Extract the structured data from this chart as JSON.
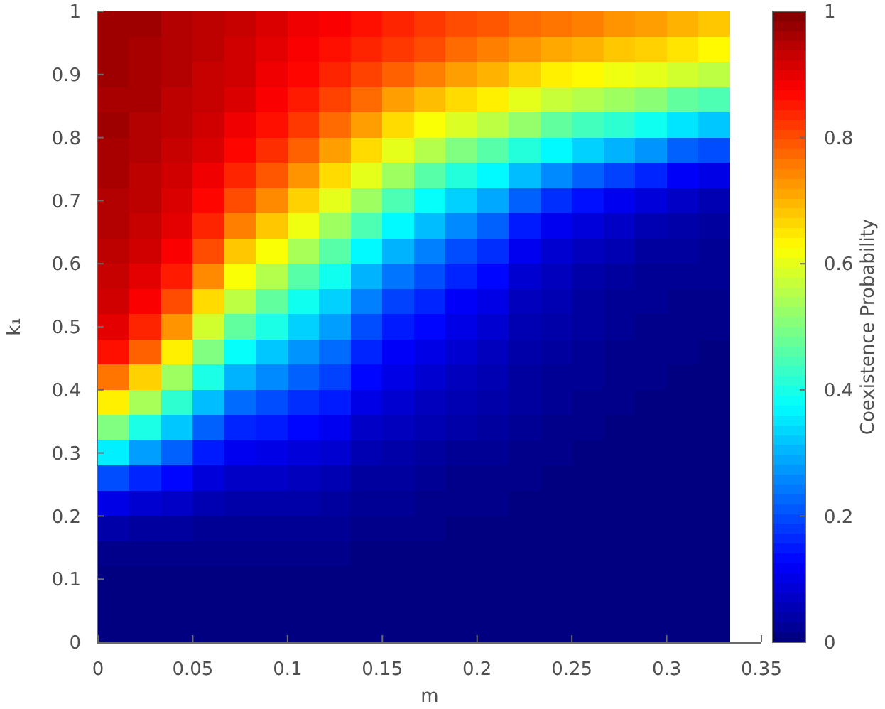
{
  "chart_data": {
    "type": "heatmap",
    "xlabel": "m",
    "ylabel": "k₁",
    "clabel": "Coexistence Probability",
    "x": [
      0.0083,
      0.025,
      0.0417,
      0.0583,
      0.075,
      0.0917,
      0.1083,
      0.125,
      0.1417,
      0.1583,
      0.175,
      0.1917,
      0.2083,
      0.225,
      0.2417,
      0.2583,
      0.275,
      0.2917,
      0.3083,
      0.325
    ],
    "cells": [
      [
        0.97,
        0.97,
        0.95,
        0.94,
        0.93,
        0.91,
        0.89,
        0.88,
        0.86,
        0.84,
        0.82,
        0.8,
        0.79,
        0.77,
        0.76,
        0.75,
        0.73,
        0.72,
        0.7,
        0.68
      ],
      [
        0.97,
        0.96,
        0.95,
        0.94,
        0.92,
        0.9,
        0.88,
        0.86,
        0.84,
        0.82,
        0.8,
        0.77,
        0.75,
        0.73,
        0.71,
        0.7,
        0.68,
        0.67,
        0.65,
        0.63
      ],
      [
        0.97,
        0.96,
        0.95,
        0.93,
        0.92,
        0.89,
        0.87,
        0.84,
        0.81,
        0.78,
        0.75,
        0.72,
        0.7,
        0.67,
        0.64,
        0.63,
        0.61,
        0.6,
        0.58,
        0.56
      ],
      [
        0.96,
        0.96,
        0.94,
        0.93,
        0.91,
        0.88,
        0.85,
        0.81,
        0.77,
        0.72,
        0.69,
        0.66,
        0.64,
        0.6,
        0.57,
        0.55,
        0.53,
        0.51,
        0.47,
        0.45
      ],
      [
        0.97,
        0.95,
        0.94,
        0.92,
        0.89,
        0.86,
        0.82,
        0.77,
        0.72,
        0.66,
        0.62,
        0.59,
        0.56,
        0.52,
        0.47,
        0.44,
        0.42,
        0.39,
        0.35,
        0.32
      ],
      [
        0.96,
        0.95,
        0.93,
        0.91,
        0.87,
        0.83,
        0.78,
        0.72,
        0.66,
        0.6,
        0.55,
        0.5,
        0.46,
        0.41,
        0.37,
        0.33,
        0.3,
        0.27,
        0.22,
        0.2
      ],
      [
        0.96,
        0.94,
        0.92,
        0.89,
        0.84,
        0.79,
        0.73,
        0.66,
        0.6,
        0.53,
        0.46,
        0.41,
        0.37,
        0.31,
        0.26,
        0.22,
        0.19,
        0.16,
        0.12,
        0.1
      ],
      [
        0.95,
        0.94,
        0.91,
        0.87,
        0.8,
        0.74,
        0.67,
        0.6,
        0.53,
        0.45,
        0.38,
        0.33,
        0.29,
        0.22,
        0.17,
        0.14,
        0.11,
        0.09,
        0.07,
        0.05
      ],
      [
        0.95,
        0.93,
        0.9,
        0.84,
        0.75,
        0.68,
        0.61,
        0.53,
        0.45,
        0.37,
        0.31,
        0.26,
        0.22,
        0.15,
        0.11,
        0.09,
        0.07,
        0.05,
        0.04,
        0.03
      ],
      [
        0.94,
        0.92,
        0.88,
        0.8,
        0.68,
        0.62,
        0.54,
        0.46,
        0.37,
        0.3,
        0.25,
        0.2,
        0.17,
        0.11,
        0.08,
        0.06,
        0.05,
        0.03,
        0.03,
        0.02
      ],
      [
        0.93,
        0.9,
        0.85,
        0.74,
        0.62,
        0.55,
        0.46,
        0.39,
        0.3,
        0.24,
        0.2,
        0.16,
        0.13,
        0.08,
        0.06,
        0.04,
        0.03,
        0.02,
        0.02,
        0.02
      ],
      [
        0.92,
        0.88,
        0.8,
        0.66,
        0.56,
        0.47,
        0.39,
        0.33,
        0.25,
        0.19,
        0.16,
        0.12,
        0.1,
        0.06,
        0.05,
        0.03,
        0.02,
        0.02,
        0.01,
        0.01
      ],
      [
        0.9,
        0.84,
        0.73,
        0.58,
        0.47,
        0.4,
        0.33,
        0.28,
        0.2,
        0.15,
        0.13,
        0.1,
        0.08,
        0.05,
        0.04,
        0.03,
        0.02,
        0.01,
        0.01,
        0.01
      ],
      [
        0.86,
        0.78,
        0.64,
        0.5,
        0.38,
        0.32,
        0.27,
        0.23,
        0.16,
        0.12,
        0.1,
        0.08,
        0.06,
        0.04,
        0.03,
        0.02,
        0.01,
        0.01,
        0.01,
        0
      ],
      [
        0.76,
        0.67,
        0.53,
        0.4,
        0.3,
        0.26,
        0.22,
        0.19,
        0.13,
        0.1,
        0.08,
        0.06,
        0.05,
        0.03,
        0.02,
        0.02,
        0.01,
        0.01,
        0,
        0
      ],
      [
        0.64,
        0.54,
        0.42,
        0.31,
        0.23,
        0.2,
        0.17,
        0.15,
        0.1,
        0.08,
        0.06,
        0.05,
        0.04,
        0.03,
        0.02,
        0.01,
        0.01,
        0,
        0,
        0
      ],
      [
        0.5,
        0.4,
        0.32,
        0.22,
        0.16,
        0.15,
        0.13,
        0.11,
        0.07,
        0.06,
        0.05,
        0.04,
        0.03,
        0.02,
        0.01,
        0.01,
        0,
        0,
        0,
        0
      ],
      [
        0.36,
        0.28,
        0.22,
        0.15,
        0.11,
        0.1,
        0.09,
        0.08,
        0.05,
        0.04,
        0.03,
        0.02,
        0.02,
        0.01,
        0.01,
        0,
        0,
        0,
        0,
        0
      ],
      [
        0.2,
        0.16,
        0.13,
        0.09,
        0.07,
        0.07,
        0.06,
        0.05,
        0.03,
        0.03,
        0.02,
        0.01,
        0.01,
        0.01,
        0,
        0,
        0,
        0,
        0,
        0
      ],
      [
        0.1,
        0.08,
        0.07,
        0.05,
        0.04,
        0.04,
        0.04,
        0.03,
        0.02,
        0.02,
        0.01,
        0.01,
        0.01,
        0,
        0,
        0,
        0,
        0,
        0,
        0
      ],
      [
        0.04,
        0.03,
        0.03,
        0.02,
        0.02,
        0.02,
        0.02,
        0.02,
        0.01,
        0.01,
        0.01,
        0,
        0,
        0,
        0,
        0,
        0,
        0,
        0,
        0
      ],
      [
        0.01,
        0.01,
        0.01,
        0.01,
        0.01,
        0.01,
        0.01,
        0.01,
        0,
        0,
        0,
        0,
        0,
        0,
        0,
        0,
        0,
        0,
        0,
        0
      ],
      [
        0,
        0,
        0,
        0,
        0,
        0,
        0,
        0,
        0,
        0,
        0,
        0,
        0,
        0,
        0,
        0,
        0,
        0,
        0,
        0
      ],
      [
        0,
        0,
        0,
        0,
        0,
        0,
        0,
        0,
        0,
        0,
        0,
        0,
        0,
        0,
        0,
        0,
        0,
        0,
        0,
        0
      ],
      [
        0,
        0,
        0,
        0,
        0,
        0,
        0,
        0,
        0,
        0,
        0,
        0,
        0,
        0,
        0,
        0,
        0,
        0,
        0,
        0
      ]
    ],
    "xlim": [
      0,
      0.35
    ],
    "xticks": [
      0,
      0.05,
      0.1,
      0.15,
      0.2,
      0.25,
      0.3,
      0.35
    ],
    "ylim": [
      0,
      1
    ],
    "yticks": [
      0,
      0.1,
      0.2,
      0.3,
      0.4,
      0.5,
      0.6,
      0.7,
      0.8,
      0.9,
      1
    ],
    "clim": [
      0,
      1
    ],
    "cticks": [
      0,
      0.2,
      0.4,
      0.6,
      0.8,
      1
    ]
  }
}
